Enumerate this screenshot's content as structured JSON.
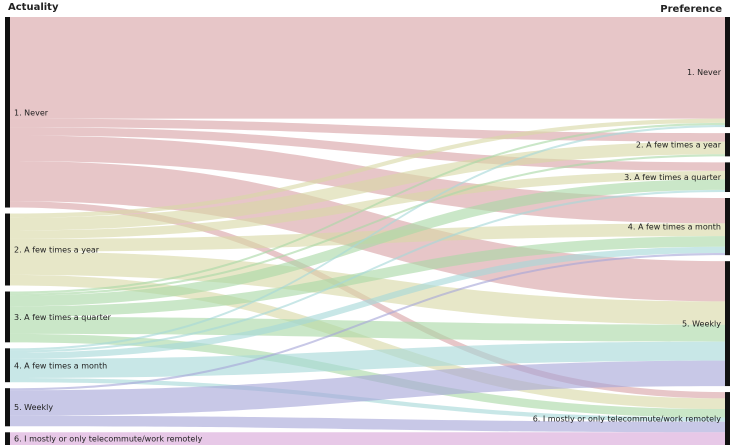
{
  "chart_data": {
    "type": "sankey",
    "left_title": "Actuality",
    "right_title": "Preference",
    "left_nodes": [
      {
        "label": "1. Never",
        "color": "#d9a3a6"
      },
      {
        "label": "2. A few times a year",
        "color": "#d8d9a6"
      },
      {
        "label": "3. A few times a quarter",
        "color": "#a9d9a6"
      },
      {
        "label": "4. A few times a month",
        "color": "#a6d8d9"
      },
      {
        "label": "5. Weekly",
        "color": "#a6a6d9"
      },
      {
        "label": "6. I mostly or only telecommute/work remotely",
        "color": "#d9a6d9"
      }
    ],
    "right_nodes": [
      {
        "label": "1. Never"
      },
      {
        "label": "2. A few times a year"
      },
      {
        "label": "3. A few times a quarter"
      },
      {
        "label": "4. A few times a month"
      },
      {
        "label": "5. Weekly"
      },
      {
        "label": "6. I mostly or only telecommute/work remotely"
      }
    ],
    "flows": [
      [
        48,
        4,
        4,
        12,
        19,
        3
      ],
      [
        2,
        6,
        4,
        6,
        11,
        5
      ],
      [
        1,
        1,
        5,
        5,
        8,
        4
      ],
      [
        1,
        0,
        1,
        3,
        9,
        2
      ],
      [
        0,
        0,
        0,
        1,
        12,
        5
      ],
      [
        0,
        0,
        0,
        0,
        0,
        6
      ]
    ]
  }
}
